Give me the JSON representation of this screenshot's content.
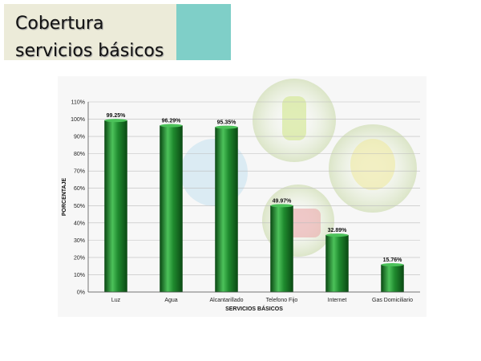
{
  "slide": {
    "title_line1": "Cobertura",
    "title_line2": "servicios básicos"
  },
  "chart_data": {
    "type": "bar",
    "categories": [
      "Luz",
      "Agua",
      "Alcantarillado",
      "Telefono Fijo",
      "Internet",
      "Gas Domiciliario"
    ],
    "values": [
      99.25,
      96.29,
      95.35,
      49.97,
      32.89,
      15.76
    ],
    "data_labels": [
      "99.25%",
      "96.29%",
      "95.35%",
      "49.97%",
      "32.89%",
      "15.76%"
    ],
    "xlabel": "SERVICIOS BÁSICOS",
    "ylabel": "PORCENTAJE",
    "ylim": [
      0,
      110
    ],
    "yticks": [
      "0%",
      "10%",
      "20%",
      "30%",
      "40%",
      "50%",
      "60%",
      "70%",
      "80%",
      "90%",
      "100%",
      "110%"
    ],
    "grid": true,
    "bar_color": "#1f8a2e",
    "bar_highlight": "#4cc25a",
    "bar_shadow": "#0b4a14"
  }
}
